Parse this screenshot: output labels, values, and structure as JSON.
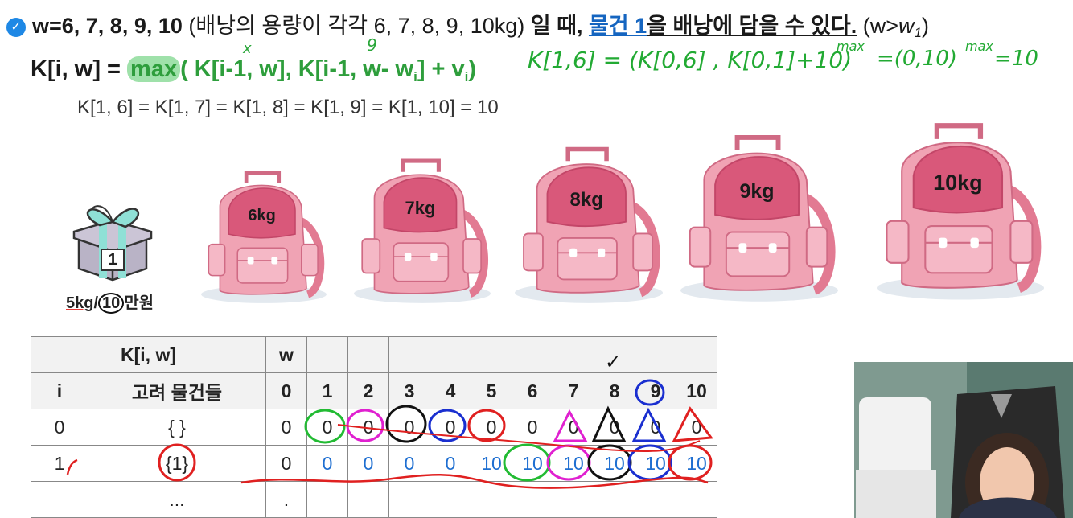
{
  "header": {
    "prefix": "w=6, 7, 8, 9, 10",
    "paren": "(배낭의 용량이 각각 6, 7, 8, 9, 10kg)",
    "mid": "일 때,",
    "item": "물건 1",
    "tail": "을 배낭에 담을 수 있다.",
    "cond": "(w>",
    "cond_var": "w",
    "cond_sub": "1",
    "cond_close": ")"
  },
  "formula": {
    "lhs": "K[i, w] =",
    "max": "max",
    "args_1": "( K[i-1, w], K[i-1, w-",
    "w_var": "w",
    "w_sub": "i",
    "args_2": "] + v",
    "v_sub": "i",
    "close": ")"
  },
  "result_line": "K[1, 6] = K[1, 7] = K[1, 8] = K[1, 9] = K[1, 10] = 10",
  "annotations": {
    "x_mark": "x",
    "nine_mark": "9",
    "handwritten_formula": "K[1,6] = (K[0,6] , K[0,1]+10)",
    "max1": "max",
    "handwritten_result": "=(0,10)",
    "max2": "max",
    "handwritten_final": "=10",
    "check_mark": "✓"
  },
  "gift": {
    "number": "1",
    "weight": "5kg",
    "separator": "/",
    "value": "10",
    "unit": "만원"
  },
  "backpacks": [
    {
      "label": "6kg"
    },
    {
      "label": "7kg"
    },
    {
      "label": "8kg"
    },
    {
      "label": "9kg"
    },
    {
      "label": "10kg"
    }
  ],
  "table": {
    "top_left": "K[i, w]",
    "w_head": "w",
    "col_i": "i",
    "col_items": "고려 물건들",
    "w_values": [
      "0",
      "1",
      "2",
      "3",
      "4",
      "5",
      "6",
      "7",
      "8",
      "9",
      "10"
    ],
    "rows": [
      {
        "i": "0",
        "items": "{ }",
        "cells": [
          "0",
          "0",
          "0",
          "0",
          "0",
          "0",
          "0",
          "0",
          "0",
          "0",
          "0"
        ]
      },
      {
        "i": "1",
        "items": "{1}",
        "cells": [
          "0",
          "0",
          "0",
          "0",
          "0",
          "10",
          "10",
          "10",
          "10",
          "10",
          "10"
        ]
      },
      {
        "i": "",
        "items": "...",
        "cells": [
          ".",
          "",
          "",
          "",
          "",
          "",
          "",
          "",
          "",
          "",
          ""
        ]
      }
    ]
  },
  "colors": {
    "accent_blue": "#1565c0",
    "formula_green": "#2e9e3c",
    "backpack_pink": "#ec8fa4",
    "value_blue": "#1f6fd1"
  }
}
